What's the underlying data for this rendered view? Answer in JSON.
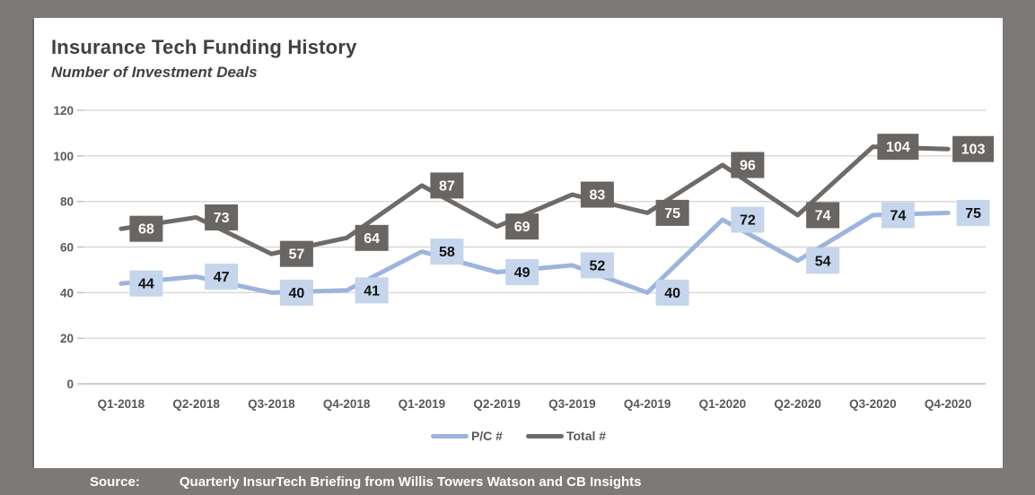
{
  "window": {
    "frame_color": "#7d7977",
    "panel_color": "#ffffff"
  },
  "header": {
    "title": "Insurance Tech Funding History",
    "subtitle": "Number of Investment Deals"
  },
  "chart_data": {
    "type": "line",
    "categories": [
      "Q1-2018",
      "Q2-2018",
      "Q3-2018",
      "Q4-2018",
      "Q1-2019",
      "Q2-2019",
      "Q3-2019",
      "Q4-2019",
      "Q1-2020",
      "Q2-2020",
      "Q3-2020",
      "Q4-2020"
    ],
    "series": [
      {
        "name": "P/C #",
        "values": [
          44,
          47,
          40,
          41,
          58,
          49,
          52,
          40,
          72,
          54,
          74,
          75
        ],
        "line_color": "#9db4dd",
        "label_fill": "#c5d5ec",
        "label_text_color": "#111111"
      },
      {
        "name": "Total #",
        "values": [
          68,
          73,
          57,
          64,
          87,
          69,
          83,
          75,
          96,
          74,
          104,
          103
        ],
        "line_color": "#6e6a67",
        "label_fill": "#696562",
        "label_text_color": "#ffffff"
      }
    ],
    "ylim": [
      0,
      120
    ],
    "yticks": [
      0,
      20,
      40,
      60,
      80,
      100,
      120
    ],
    "grid": "horizontal",
    "gridline_color": "#d9d7d5",
    "axis_line_color": "#bfbdbb",
    "axis_text_color": "#595959",
    "data_labels": "right",
    "legend_position": "bottom"
  },
  "footer": {
    "source_label": "Source:",
    "source_text": "Quarterly InsurTech Briefing from Willis Towers Watson and CB Insights"
  }
}
